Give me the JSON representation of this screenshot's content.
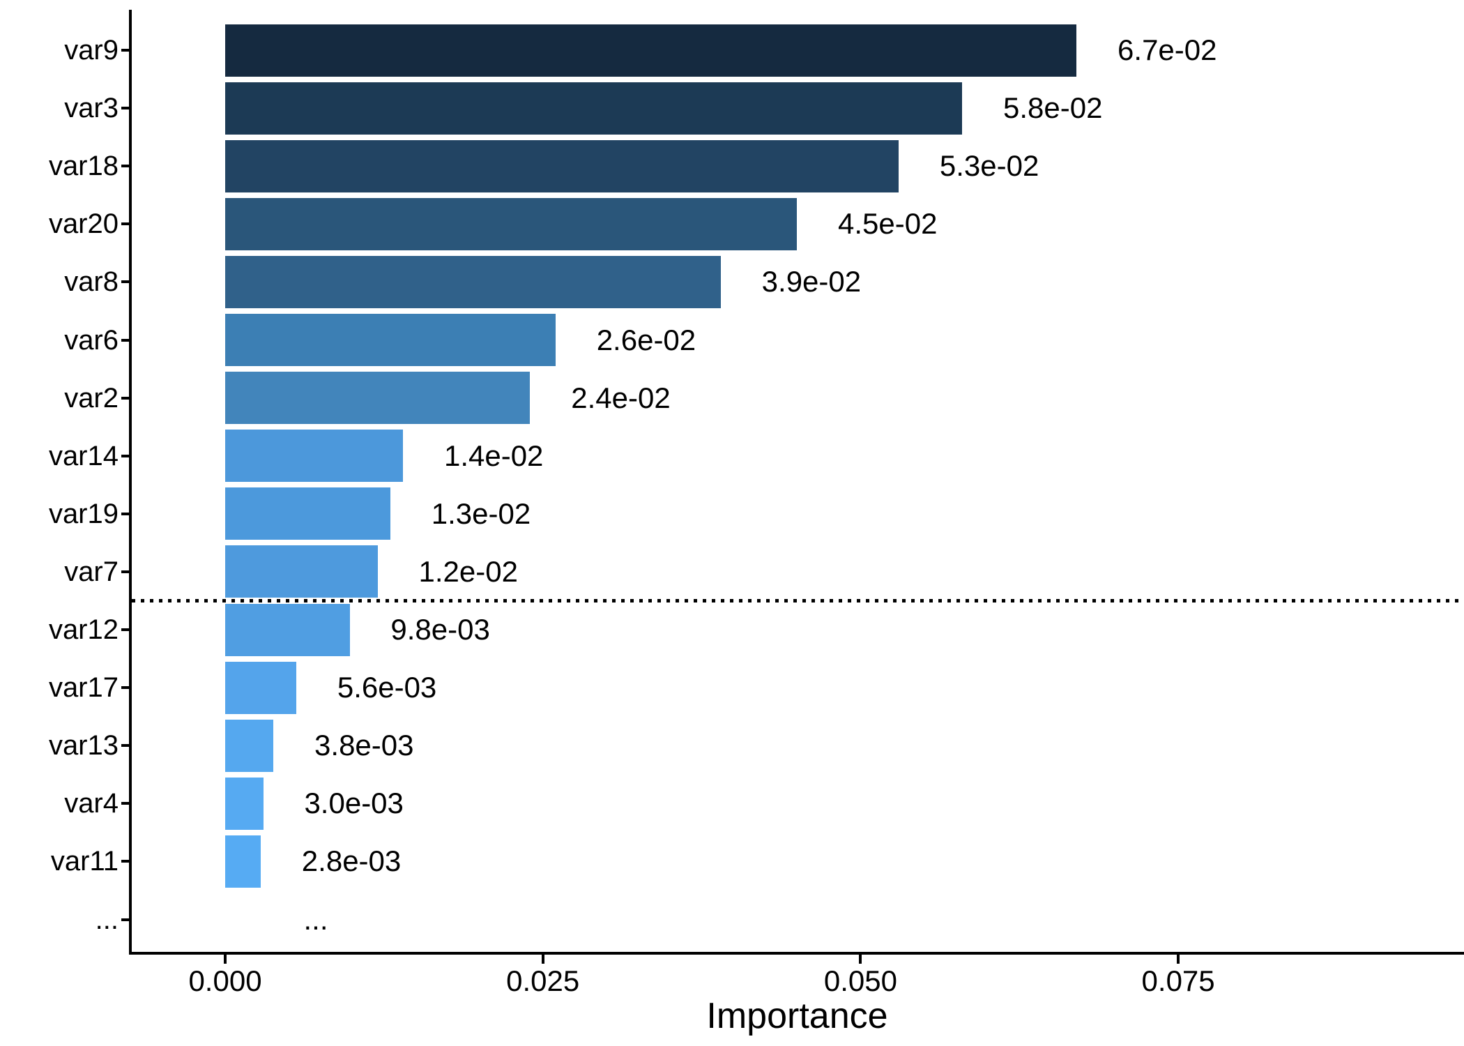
{
  "chart_data": {
    "type": "bar",
    "orientation": "horizontal",
    "title": "",
    "xlabel": "Importance",
    "ylabel": "",
    "categories": [
      "var9",
      "var3",
      "var18",
      "var20",
      "var8",
      "var6",
      "var2",
      "var14",
      "var19",
      "var7",
      "var12",
      "var17",
      "var13",
      "var4",
      "var11",
      "..."
    ],
    "values": [
      0.067,
      0.058,
      0.053,
      0.045,
      0.039,
      0.026,
      0.024,
      0.014,
      0.013,
      0.012,
      0.0098,
      0.0056,
      0.0038,
      0.003,
      0.0028,
      null
    ],
    "value_labels": [
      "6.7e-02",
      "5.8e-02",
      "5.3e-02",
      "4.5e-02",
      "3.9e-02",
      "2.6e-02",
      "2.4e-02",
      "1.4e-02",
      "1.3e-02",
      "1.2e-02",
      "9.8e-03",
      "5.6e-03",
      "3.8e-03",
      "3.0e-03",
      "2.8e-03",
      "..."
    ],
    "bar_colors": [
      "#152A40",
      "#1C3A55",
      "#224463",
      "#2A567A",
      "#30618A",
      "#3C7FB4",
      "#4285BB",
      "#4C98DB",
      "#4C99DC",
      "#4E9ADD",
      "#509EE2",
      "#54A4EB",
      "#55A8EF",
      "#56AAF2",
      "#56ABF3",
      null
    ],
    "x_ticks": {
      "labels": [
        "0.000",
        "0.025",
        "0.050",
        "0.075"
      ],
      "values": [
        0,
        0.025,
        0.05,
        0.075
      ]
    },
    "xlim": [
      -0.0075,
      0.0975
    ],
    "grid": false,
    "legend": false,
    "threshold_line": {
      "style": "dotted",
      "color": "#000000",
      "after_category": "var7"
    },
    "axis_color": "#000000",
    "text_color": "#000000",
    "gradient_low_color": "#152A40",
    "gradient_high_color": "#56ABF3"
  }
}
